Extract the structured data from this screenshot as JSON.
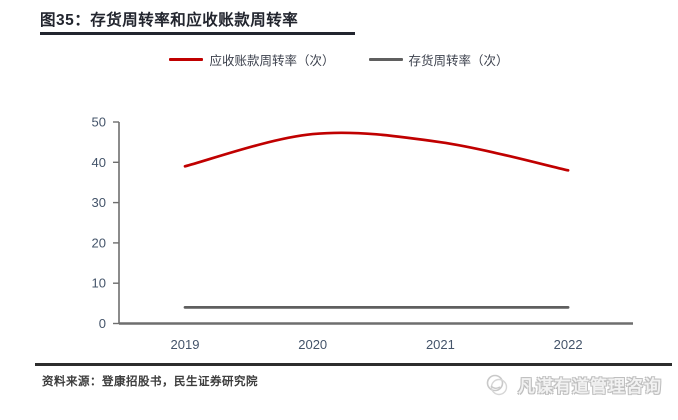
{
  "title": "图35：存货周转率和应收账款周转率",
  "chart_data": {
    "type": "line",
    "categories": [
      "2019",
      "2020",
      "2021",
      "2022"
    ],
    "series": [
      {
        "name": "应收账款周转率（次）",
        "values": [
          39,
          47,
          45,
          38
        ],
        "color": "#C00000",
        "smooth": true
      },
      {
        "name": "存货周转率（次）",
        "values": [
          4,
          4,
          4,
          4
        ],
        "color": "#5f5f5f",
        "smooth": true
      }
    ],
    "title": "存货周转率和应收账款周转率",
    "xlabel": "",
    "ylabel": "",
    "ylim": [
      0,
      50
    ],
    "ytick_step": 10,
    "grid": false,
    "legend_position": "top"
  },
  "footer": {
    "source": "资料来源：登康招股书，民生证券研究院"
  },
  "watermark": {
    "text": "凡谋有道管理咨询"
  },
  "colors": {
    "accent_red": "#C00000",
    "series_gray": "#5f5f5f",
    "axis": "#6e6e6e",
    "tick_label": "#44546A",
    "title_dark": "#22252e"
  }
}
